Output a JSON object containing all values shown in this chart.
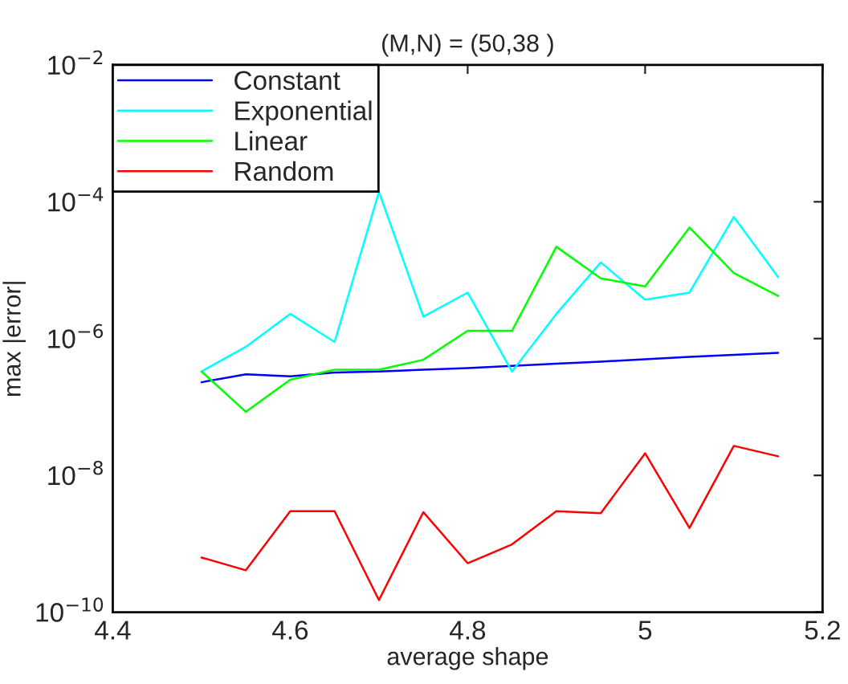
{
  "chart_data": {
    "type": "line",
    "title": "(M,N) = (50,38 )",
    "xlabel": "average shape",
    "ylabel": "max |error|",
    "x": [
      4.5,
      4.55,
      4.6,
      4.65,
      4.7,
      4.75,
      4.8,
      4.85,
      4.9,
      4.95,
      5.0,
      5.05,
      5.1,
      5.15
    ],
    "series": [
      {
        "name": "Constant",
        "color": "#0000ff",
        "values": [
          2.3e-07,
          3e-07,
          2.8e-07,
          3.2e-07,
          3.3e-07,
          3.5e-07,
          3.7e-07,
          4e-07,
          4.3e-07,
          4.6e-07,
          5e-07,
          5.4e-07,
          5.8e-07,
          6.2e-07
        ]
      },
      {
        "name": "Exponential",
        "color": "#00ffff",
        "values": [
          3.3e-07,
          7.6e-07,
          2.3e-06,
          8.9e-07,
          0.00014,
          2.1e-06,
          4.7e-06,
          3.3e-07,
          2.3e-06,
          1.3e-05,
          3.7e-06,
          4.7e-06,
          6e-05,
          7.9e-06
        ]
      },
      {
        "name": "Linear",
        "color": "#00ff00",
        "values": [
          3.3e-07,
          8.5e-08,
          2.5e-07,
          3.5e-07,
          3.5e-07,
          4.9e-07,
          1.3e-06,
          1.3e-06,
          2.2e-05,
          7.6e-06,
          5.8e-06,
          4.2e-05,
          9.1e-06,
          4.2e-06
        ]
      },
      {
        "name": "Random",
        "color": "#ff0000",
        "values": [
          6.3e-10,
          4.1e-10,
          3e-09,
          3e-09,
          1.5e-10,
          2.9e-09,
          5.2e-10,
          9.8e-10,
          3e-09,
          2.8e-09,
          2.1e-08,
          1.7e-09,
          2.7e-08,
          1.9e-08
        ]
      }
    ],
    "log": "y",
    "xlim": [
      4.4,
      5.2
    ],
    "xticks": [
      4.4,
      4.6,
      4.8,
      5,
      5.2
    ],
    "ylim": [
      1e-10,
      0.01
    ],
    "yticks": [
      {
        "value": 1e-10,
        "label": "10$^{−10}$"
      },
      {
        "value": 1e-08,
        "label": "10$^{−8}$"
      },
      {
        "value": 1e-06,
        "label": "10$^{−6}$"
      },
      {
        "value": 0.0001,
        "label": "10$^{−4}$"
      },
      {
        "value": 0.01,
        "label": "10$^{−2}$"
      }
    ],
    "legend": "top left",
    "grid": false,
    "marker": "none",
    "line_style": "solid"
  }
}
